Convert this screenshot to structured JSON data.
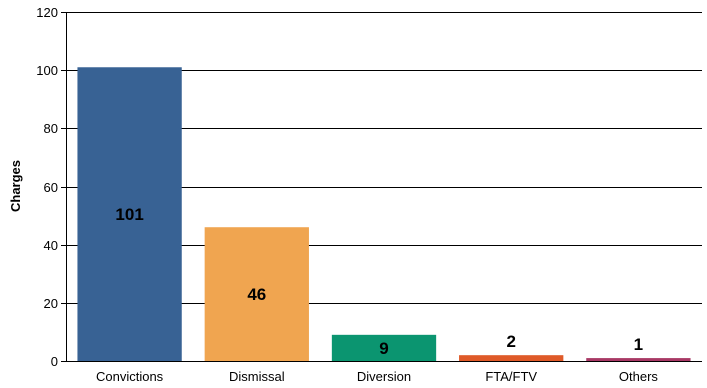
{
  "chart_data": {
    "type": "bar",
    "title": "",
    "xlabel": "",
    "ylabel": "Charges",
    "categories": [
      "Convictions",
      "Dismissal",
      "Diversion",
      "FTA/FTV",
      "Others"
    ],
    "values": [
      101,
      46,
      9,
      2,
      1
    ],
    "data_labels": [
      "101",
      "46",
      "9",
      "2",
      "1"
    ],
    "colors": [
      "#386294",
      "#f0a550",
      "#0b9570",
      "#df5a28",
      "#a83865"
    ],
    "ylim": [
      0,
      120
    ],
    "yticks": [
      0,
      20,
      40,
      60,
      80,
      100,
      120
    ],
    "grid": true,
    "legend": "none"
  }
}
